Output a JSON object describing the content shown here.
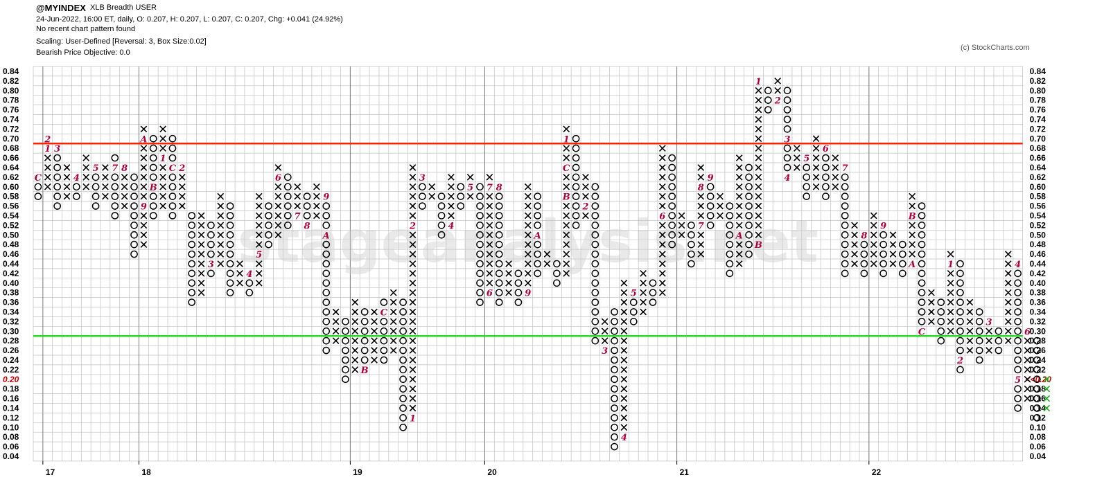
{
  "header": {
    "symbol": "@MYINDEX",
    "description": "XLB Breadth  USER",
    "ohlc_line": "24-Jun-2022, 16:00 ET, daily, O: 0.207, H: 0.207, L: 0.207, C: 0.207, Chg: +0.041 (24.92%)",
    "pattern_line": "No recent chart pattern found",
    "scaling_line": "Scaling: User-Defined [Reversal: 3, Box Size:0.02]",
    "objective_line": "Bearish Price Objective: 0.0",
    "copyright": "(c) StockCharts.com"
  },
  "watermark": "stageanalysis.net",
  "colors": {
    "x_mark": "#000000",
    "o_mark": "#000000",
    "month_marker": "#b0003a",
    "current_column": "#22aa22",
    "resistance_line": "#ff2200",
    "support_line": "#22dd22",
    "grid": "#bfbfbf"
  },
  "chart_data": {
    "type": "point-and-figure",
    "box_size": 0.02,
    "reversal": 3,
    "ylim": [
      0.04,
      0.84
    ],
    "y_ticks": [
      "0.04",
      "0.06",
      "0.08",
      "0.10",
      "0.12",
      "0.14",
      "0.16",
      "0.18",
      "0.20",
      "0.22",
      "0.24",
      "0.26",
      "0.28",
      "0.30",
      "0.32",
      "0.34",
      "0.36",
      "0.38",
      "0.40",
      "0.42",
      "0.44",
      "0.46",
      "0.48",
      "0.50",
      "0.52",
      "0.54",
      "0.56",
      "0.58",
      "0.60",
      "0.62",
      "0.64",
      "0.66",
      "0.68",
      "0.70",
      "0.72",
      "0.74",
      "0.76",
      "0.78",
      "0.80",
      "0.82",
      "0.84"
    ],
    "current_value_label": "0.20",
    "right_current_label": "<<0.20",
    "horizontal_lines": [
      {
        "name": "resistance",
        "value": 0.69
      },
      {
        "name": "support",
        "value": 0.29
      }
    ],
    "x_year_labels": [
      {
        "label": "17",
        "column": 1
      },
      {
        "label": "18",
        "column": 11
      },
      {
        "label": "19",
        "column": 33
      },
      {
        "label": "20",
        "column": 47
      },
      {
        "label": "21",
        "column": 67
      },
      {
        "label": "22",
        "column": 87
      }
    ],
    "columns": [
      {
        "t": "O",
        "lo": 0.58,
        "hi": 0.62,
        "m": {
          "0.62": "C"
        }
      },
      {
        "t": "X",
        "lo": 0.6,
        "hi": 0.7,
        "m": {
          "0.68": "1",
          "0.7": "2"
        }
      },
      {
        "t": "O",
        "lo": 0.56,
        "hi": 0.68,
        "m": {
          "0.68": "3"
        }
      },
      {
        "t": "X",
        "lo": 0.58,
        "hi": 0.64
      },
      {
        "t": "O",
        "lo": 0.58,
        "hi": 0.62,
        "m": {
          "0.62": "4"
        }
      },
      {
        "t": "X",
        "lo": 0.6,
        "hi": 0.66
      },
      {
        "t": "O",
        "lo": 0.56,
        "hi": 0.64,
        "m": {
          "0.64": "5"
        }
      },
      {
        "t": "X",
        "lo": 0.58,
        "hi": 0.64,
        "m": {
          "0.56": "6"
        }
      },
      {
        "t": "O",
        "lo": 0.54,
        "hi": 0.66,
        "m": {
          "0.64": "7"
        }
      },
      {
        "t": "X",
        "lo": 0.56,
        "hi": 0.64,
        "m": {
          "0.64": "8"
        }
      },
      {
        "t": "O",
        "lo": 0.46,
        "hi": 0.62
      },
      {
        "t": "X",
        "lo": 0.48,
        "hi": 0.72,
        "m": {
          "0.56": "9",
          "0.7": "A"
        }
      },
      {
        "t": "O",
        "lo": 0.54,
        "hi": 0.7,
        "m": {
          "0.6": "B"
        }
      },
      {
        "t": "X",
        "lo": 0.56,
        "hi": 0.72,
        "m": {
          "0.66": "1"
        }
      },
      {
        "t": "O",
        "lo": 0.54,
        "hi": 0.7,
        "m": {
          "0.64": "C"
        }
      },
      {
        "t": "X",
        "lo": 0.56,
        "hi": 0.64,
        "m": {
          "0.64": "2"
        }
      },
      {
        "t": "O",
        "lo": 0.36,
        "hi": 0.54
      },
      {
        "t": "X",
        "lo": 0.38,
        "hi": 0.54
      },
      {
        "t": "O",
        "lo": 0.42,
        "hi": 0.52,
        "m": {
          "0.44": "3"
        }
      },
      {
        "t": "X",
        "lo": 0.44,
        "hi": 0.58
      },
      {
        "t": "O",
        "lo": 0.38,
        "hi": 0.56
      },
      {
        "t": "X",
        "lo": 0.4,
        "hi": 0.44
      },
      {
        "t": "O",
        "lo": 0.38,
        "hi": 0.42,
        "m": {
          "0.42": "4"
        }
      },
      {
        "t": "X",
        "lo": 0.4,
        "hi": 0.58,
        "m": {
          "0.46": "5"
        }
      },
      {
        "t": "O",
        "lo": 0.48,
        "hi": 0.56
      },
      {
        "t": "X",
        "lo": 0.5,
        "hi": 0.64,
        "m": {
          "0.62": "6"
        }
      },
      {
        "t": "O",
        "lo": 0.52,
        "hi": 0.62
      },
      {
        "t": "X",
        "lo": 0.54,
        "hi": 0.6,
        "m": {
          "0.54": "7"
        }
      },
      {
        "t": "O",
        "lo": 0.52,
        "hi": 0.58,
        "m": {
          "0.52": "8"
        }
      },
      {
        "t": "X",
        "lo": 0.54,
        "hi": 0.6
      },
      {
        "t": "O",
        "lo": 0.26,
        "hi": 0.58,
        "m": {
          "0.58": "9",
          "0.5": "A"
        }
      },
      {
        "t": "X",
        "lo": 0.28,
        "hi": 0.34
      },
      {
        "t": "O",
        "lo": 0.2,
        "hi": 0.32
      },
      {
        "t": "X",
        "lo": 0.22,
        "hi": 0.36
      },
      {
        "t": "O",
        "lo": 0.22,
        "hi": 0.34,
        "m": {
          "0.22": "B"
        }
      },
      {
        "t": "X",
        "lo": 0.24,
        "hi": 0.34
      },
      {
        "t": "O",
        "lo": 0.24,
        "hi": 0.36,
        "m": {
          "0.34": "C"
        }
      },
      {
        "t": "X",
        "lo": 0.26,
        "hi": 0.38
      },
      {
        "t": "O",
        "lo": 0.1,
        "hi": 0.36
      },
      {
        "t": "X",
        "lo": 0.12,
        "hi": 0.64,
        "m": {
          "0.12": "1",
          "0.52": "2"
        }
      },
      {
        "t": "O",
        "lo": 0.56,
        "hi": 0.62,
        "m": {
          "0.62": "3"
        }
      },
      {
        "t": "X",
        "lo": 0.58,
        "hi": 0.6
      },
      {
        "t": "O",
        "lo": 0.5,
        "hi": 0.58
      },
      {
        "t": "X",
        "lo": 0.52,
        "hi": 0.62,
        "m": {
          "0.52": "4"
        }
      },
      {
        "t": "O",
        "lo": 0.56,
        "hi": 0.6
      },
      {
        "t": "X",
        "lo": 0.58,
        "hi": 0.62,
        "m": {
          "0.6": "5"
        }
      },
      {
        "t": "O",
        "lo": 0.36,
        "hi": 0.6
      },
      {
        "t": "X",
        "lo": 0.38,
        "hi": 0.62,
        "m": {
          "0.38": "6",
          "0.6": "7"
        }
      },
      {
        "t": "O",
        "lo": 0.36,
        "hi": 0.6,
        "m": {
          "0.6": "8"
        }
      },
      {
        "t": "X",
        "lo": 0.38,
        "hi": 0.44
      },
      {
        "t": "O",
        "lo": 0.36,
        "hi": 0.42
      },
      {
        "t": "X",
        "lo": 0.38,
        "hi": 0.6,
        "m": {
          "0.38": "9"
        }
      },
      {
        "t": "O",
        "lo": 0.42,
        "hi": 0.58,
        "m": {
          "0.5": "A"
        }
      },
      {
        "t": "X",
        "lo": 0.44,
        "hi": 0.46
      },
      {
        "t": "O",
        "lo": 0.4,
        "hi": 0.44
      },
      {
        "t": "X",
        "lo": 0.42,
        "hi": 0.72,
        "m": {
          "0.58": "B",
          "0.64": "C",
          "0.7": "1"
        }
      },
      {
        "t": "O",
        "lo": 0.52,
        "hi": 0.7
      },
      {
        "t": "X",
        "lo": 0.54,
        "hi": 0.62,
        "m": {
          "0.56": "2"
        }
      },
      {
        "t": "O",
        "lo": 0.28,
        "hi": 0.6
      },
      {
        "t": "X",
        "lo": 0.26,
        "hi": 0.32,
        "m": {
          "0.26": "3"
        }
      },
      {
        "t": "O",
        "lo": 0.06,
        "hi": 0.34
      },
      {
        "t": "X",
        "lo": 0.08,
        "hi": 0.4,
        "m": {
          "0.08": "4"
        }
      },
      {
        "t": "O",
        "lo": 0.32,
        "hi": 0.38,
        "m": {
          "0.38": "5"
        }
      },
      {
        "t": "X",
        "lo": 0.34,
        "hi": 0.42
      },
      {
        "t": "O",
        "lo": 0.36,
        "hi": 0.4
      },
      {
        "t": "X",
        "lo": 0.38,
        "hi": 0.68,
        "m": {
          "0.54": "6"
        }
      },
      {
        "t": "O",
        "lo": 0.48,
        "hi": 0.66
      },
      {
        "t": "X",
        "lo": 0.5,
        "hi": 0.54
      },
      {
        "t": "O",
        "lo": 0.44,
        "hi": 0.52
      },
      {
        "t": "X",
        "lo": 0.46,
        "hi": 0.64,
        "m": {
          "0.52": "7",
          "0.6": "8"
        }
      },
      {
        "t": "O",
        "lo": 0.52,
        "hi": 0.62,
        "m": {
          "0.62": "9"
        }
      },
      {
        "t": "X",
        "lo": 0.54,
        "hi": 0.58
      },
      {
        "t": "O",
        "lo": 0.42,
        "hi": 0.56
      },
      {
        "t": "X",
        "lo": 0.44,
        "hi": 0.66,
        "m": {
          "0.5": "A"
        }
      },
      {
        "t": "O",
        "lo": 0.46,
        "hi": 0.64
      },
      {
        "t": "X",
        "lo": 0.48,
        "hi": 0.82,
        "m": {
          "0.48": "B",
          "0.82": "1"
        }
      },
      {
        "t": "O",
        "lo": 0.76,
        "hi": 0.8
      },
      {
        "t": "X",
        "lo": 0.78,
        "hi": 0.82,
        "m": {
          "0.78": "2"
        }
      },
      {
        "t": "O",
        "lo": 0.62,
        "hi": 0.8,
        "m": {
          "0.7": "3",
          "0.62": "4"
        }
      },
      {
        "t": "X",
        "lo": 0.64,
        "hi": 0.68
      },
      {
        "t": "O",
        "lo": 0.58,
        "hi": 0.66,
        "m": {
          "0.66": "5"
        }
      },
      {
        "t": "X",
        "lo": 0.6,
        "hi": 0.7
      },
      {
        "t": "O",
        "lo": 0.58,
        "hi": 0.68,
        "m": {
          "0.68": "6"
        }
      },
      {
        "t": "X",
        "lo": 0.6,
        "hi": 0.66
      },
      {
        "t": "O",
        "lo": 0.42,
        "hi": 0.64,
        "m": {
          "0.64": "7"
        }
      },
      {
        "t": "X",
        "lo": 0.44,
        "hi": 0.52
      },
      {
        "t": "O",
        "lo": 0.42,
        "hi": 0.5,
        "m": {
          "0.5": "8"
        }
      },
      {
        "t": "X",
        "lo": 0.44,
        "hi": 0.54
      },
      {
        "t": "O",
        "lo": 0.42,
        "hi": 0.52,
        "m": {
          "0.52": "9"
        }
      },
      {
        "t": "X",
        "lo": 0.44,
        "hi": 0.5
      },
      {
        "t": "O",
        "lo": 0.42,
        "hi": 0.48
      },
      {
        "t": "X",
        "lo": 0.44,
        "hi": 0.58,
        "m": {
          "0.44": "A",
          "0.54": "B"
        }
      },
      {
        "t": "O",
        "lo": 0.3,
        "hi": 0.56,
        "m": {
          "0.3": "C"
        }
      },
      {
        "t": "X",
        "lo": 0.32,
        "hi": 0.38
      },
      {
        "t": "O",
        "lo": 0.28,
        "hi": 0.36
      },
      {
        "t": "X",
        "lo": 0.3,
        "hi": 0.46,
        "m": {
          "0.44": "1"
        }
      },
      {
        "t": "O",
        "lo": 0.22,
        "hi": 0.44,
        "m": {
          "0.24": "2"
        }
      },
      {
        "t": "X",
        "lo": 0.26,
        "hi": 0.36
      },
      {
        "t": "O",
        "lo": 0.24,
        "hi": 0.34
      },
      {
        "t": "X",
        "lo": 0.26,
        "hi": 0.32,
        "m": {
          "0.32": "3"
        }
      },
      {
        "t": "O",
        "lo": 0.26,
        "hi": 0.3
      },
      {
        "t": "X",
        "lo": 0.28,
        "hi": 0.46
      },
      {
        "t": "O",
        "lo": 0.14,
        "hi": 0.44,
        "m": {
          "0.44": "4",
          "0.2": "5"
        }
      },
      {
        "t": "X",
        "lo": 0.16,
        "hi": 0.3,
        "m": {
          "0.3": "6"
        }
      },
      {
        "t": "O",
        "lo": 0.12,
        "hi": 0.28
      },
      {
        "t": "X",
        "lo": 0.14,
        "hi": 0.2,
        "current": true
      }
    ]
  }
}
